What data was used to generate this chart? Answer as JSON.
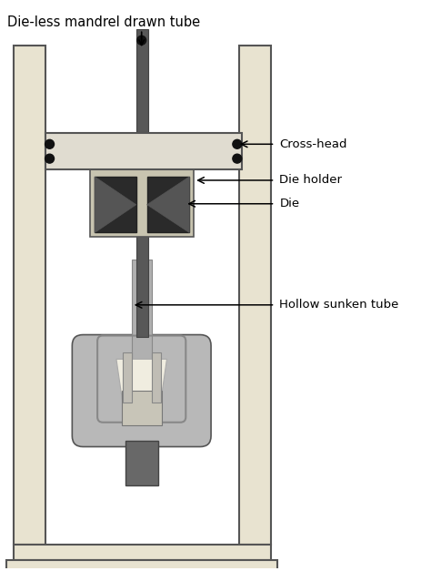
{
  "title": "Die-less mandrel drawn tube",
  "labels": {
    "cross_head": "Cross-head",
    "die_holder": "Die holder",
    "die": "Die",
    "hollow_sunken_tube": "Hollow sunken tube"
  },
  "colors": {
    "background": "#ffffff",
    "frame_fill": "#e8e3d0",
    "frame_stroke": "#555555",
    "crosshead_fill": "#e0dcd0",
    "die_holder_fill": "#c8c4b0",
    "die_fill": "#2a2a2a",
    "tube_light": "#b0b0b0",
    "tube_dark": "#686868",
    "mandrel_dark": "#585858",
    "chuck_outer": "#b8b8b8",
    "chuck_inner": "#989898",
    "chuck_white": "#f0ede0",
    "chuck_box": "#c0bdb0",
    "chuck_stem": "#686868",
    "bolt": "#111111"
  },
  "figsize": [
    4.74,
    6.27
  ],
  "dpi": 100
}
